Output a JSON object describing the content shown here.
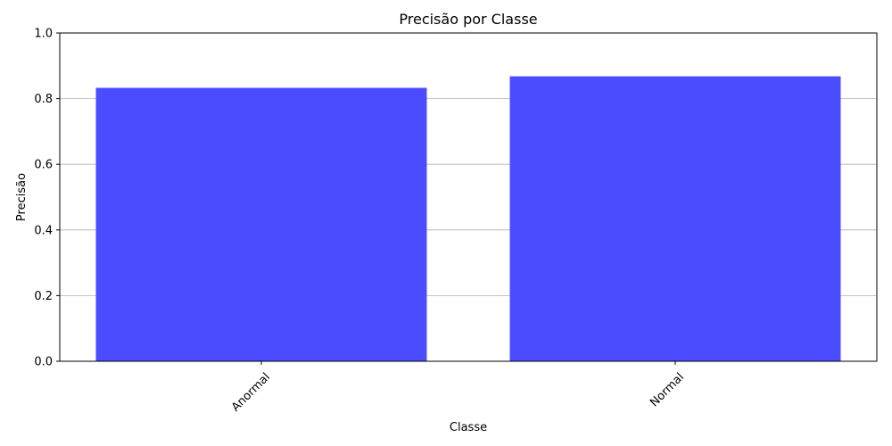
{
  "chart_data": {
    "type": "bar",
    "title": "Precisão por Classe",
    "xlabel": "Classe",
    "ylabel": "Precisão",
    "categories": [
      "Anormal",
      "Normal"
    ],
    "values": [
      0.833,
      0.868
    ],
    "ylim": [
      0,
      1.0
    ],
    "yticks": [
      "0.0",
      "0.2",
      "0.4",
      "0.6",
      "0.8",
      "1.0"
    ],
    "grid": "y",
    "bar_color": "#4b4bff",
    "xtick_rotation": 45
  }
}
